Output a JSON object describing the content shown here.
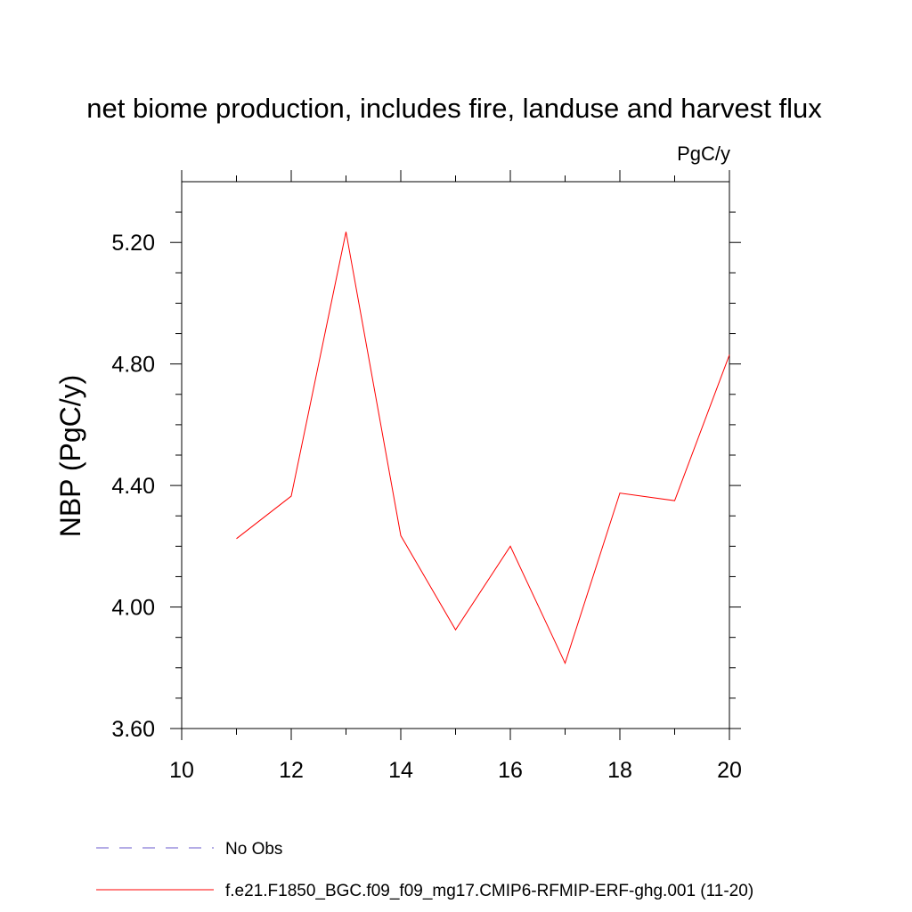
{
  "chart_data": {
    "type": "line",
    "title": "net biome production, includes fire, landuse and harvest flux",
    "units": "PgC/y",
    "ylabel": "NBP  (PgC/y)",
    "xlabel": "",
    "xlim": [
      10,
      20
    ],
    "ylim": [
      3.6,
      5.4
    ],
    "x_ticks": [
      10,
      12,
      14,
      16,
      18,
      20
    ],
    "x_tick_labels": [
      "10",
      "12",
      "14",
      "16",
      "18",
      "20"
    ],
    "y_ticks": [
      3.6,
      4.0,
      4.4,
      4.8,
      5.2
    ],
    "y_tick_labels": [
      "3.60",
      "4.00",
      "4.40",
      "4.80",
      "5.20"
    ],
    "grid": false,
    "legend_position": "bottom",
    "x": [
      11,
      12,
      13,
      14,
      15,
      16,
      17,
      18,
      19,
      20
    ],
    "series": [
      {
        "name": "f.e21.F1850_BGC.f09_f09_mg17.CMIP6-RFMIP-ERF-ghg.001 (11-20)",
        "values": [
          4.225,
          4.365,
          5.235,
          4.235,
          3.925,
          4.2,
          3.815,
          4.375,
          4.35,
          4.83
        ],
        "color": "#ff0000",
        "dash": "solid"
      }
    ],
    "legend": [
      {
        "label": "No Obs",
        "color": "#6a5acd",
        "dash": "dashed"
      },
      {
        "label": "f.e21.F1850_BGC.f09_f09_mg17.CMIP6-RFMIP-ERF-ghg.001 (11-20)",
        "color": "#ff0000",
        "dash": "solid"
      }
    ]
  }
}
